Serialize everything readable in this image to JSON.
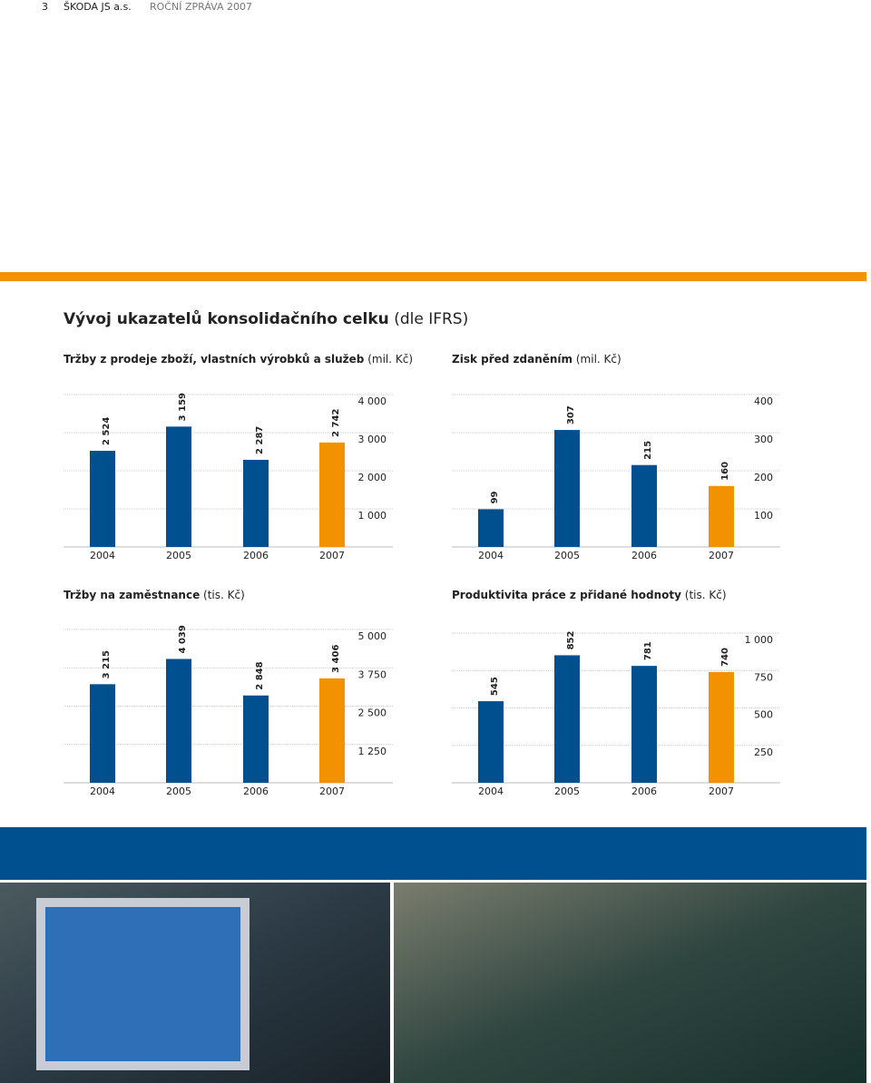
{
  "header": {
    "page": "3",
    "company": "ŠKODA JS a.s.",
    "report": "ROČNÍ ZPRÁVA 2007"
  },
  "heading": {
    "bold": "Vývoj ukazatelů konsolidačního celku",
    "rest": "(dle IFRS)"
  },
  "chart_data": [
    {
      "type": "bar",
      "title": "Tržby z prodeje zboží, vlastních výrobků a služeb",
      "unit": "(mil. Kč)",
      "categories": [
        "2004",
        "2005",
        "2006",
        "2007"
      ],
      "values": [
        2524,
        3159,
        2287,
        2742
      ],
      "value_labels": [
        "2 524",
        "3 159",
        "2 287",
        "2 742"
      ],
      "colors": [
        "#00508f",
        "#00508f",
        "#00508f",
        "#f39200"
      ],
      "ylim": [
        0,
        4000
      ],
      "yticks": [
        {
          "value": 1000,
          "label": "1 000"
        },
        {
          "value": 2000,
          "label": "2 000"
        },
        {
          "value": 3000,
          "label": "3 000"
        },
        {
          "value": 4000,
          "label": "4 000"
        }
      ],
      "grid": true
    },
    {
      "type": "bar",
      "title": "Zisk před zdaněním",
      "unit": "(mil. Kč)",
      "categories": [
        "2004",
        "2005",
        "2006",
        "2007"
      ],
      "values": [
        99,
        307,
        215,
        160
      ],
      "colors": [
        "#00508f",
        "#00508f",
        "#00508f",
        "#f39200"
      ],
      "ylim": [
        0,
        400
      ],
      "yticks": [
        100,
        200,
        300,
        400
      ],
      "grid": true
    },
    {
      "type": "bar",
      "title": "Tržby na zaměstnance",
      "unit": "(tis. Kč)",
      "categories": [
        "2004",
        "2005",
        "2006",
        "2007"
      ],
      "values": [
        3215,
        4039,
        2848,
        3406
      ],
      "value_labels": [
        "3 215",
        "4 039",
        "2 848",
        "3 406"
      ],
      "colors": [
        "#00508f",
        "#00508f",
        "#00508f",
        "#f39200"
      ],
      "ylim": [
        0,
        5000
      ],
      "yticks": [
        {
          "value": 1250,
          "label": "1 250"
        },
        {
          "value": 2500,
          "label": "2 500"
        },
        {
          "value": 3750,
          "label": "3 750"
        },
        {
          "value": 5000,
          "label": "5 000"
        }
      ],
      "grid": true
    },
    {
      "type": "bar",
      "title": "Produktivita práce z přidané hodnoty",
      "unit": "(tis. Kč)",
      "categories": [
        "2004",
        "2005",
        "2006",
        "2007"
      ],
      "values": [
        545,
        852,
        781,
        740
      ],
      "colors": [
        "#00508f",
        "#00508f",
        "#00508f",
        "#f39200"
      ],
      "ylim": [
        0,
        1000
      ],
      "yticks": [
        250,
        500,
        750,
        {
          "value": 1000,
          "label": "1 000"
        }
      ],
      "grid": true
    }
  ]
}
